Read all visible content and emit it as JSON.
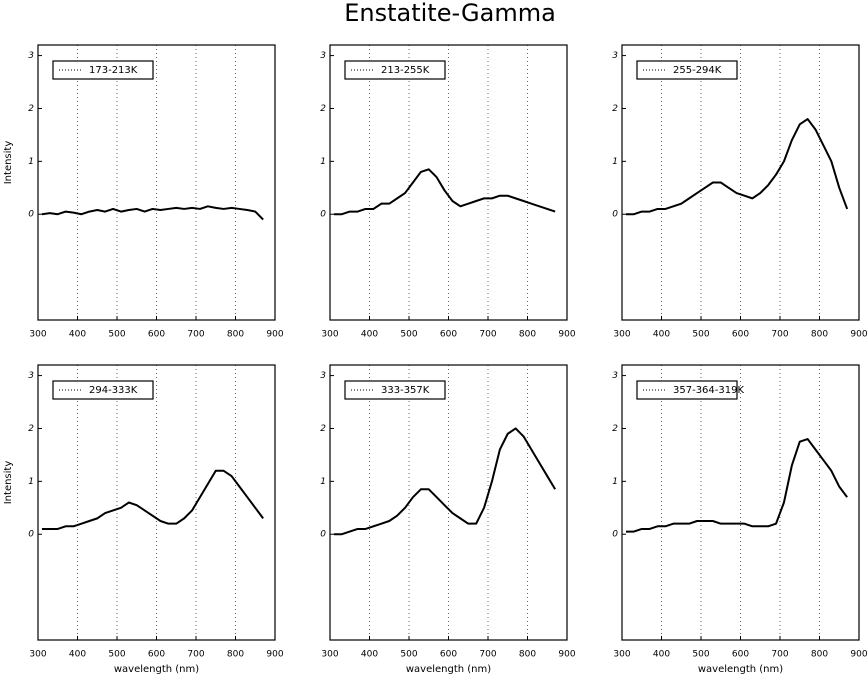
{
  "title": "Enstatite-Gamma",
  "chart_data": [
    {
      "type": "line",
      "y_label": "Intensity",
      "x": [
        310,
        330,
        350,
        370,
        390,
        410,
        430,
        450,
        470,
        490,
        510,
        530,
        550,
        570,
        590,
        610,
        630,
        650,
        670,
        690,
        710,
        730,
        750,
        770,
        790,
        810,
        830,
        850,
        870
      ],
      "series": [
        {
          "name": "173-213K",
          "color": "#000000",
          "values": [
            0,
            0.02,
            0,
            0.05,
            0.03,
            0,
            0.05,
            0.08,
            0.05,
            0.1,
            0.05,
            0.08,
            0.1,
            0.05,
            0.1,
            0.08,
            0.1,
            0.12,
            0.1,
            0.12,
            0.1,
            0.15,
            0.12,
            0.1,
            0.12,
            0.1,
            0.08,
            0.05,
            -0.1
          ]
        }
      ],
      "xlim": [
        300,
        900
      ],
      "ylim": [
        -2,
        3.2
      ],
      "xticks": [
        300,
        400,
        500,
        600,
        700,
        800,
        900
      ],
      "yticks": [
        0,
        1,
        2,
        3
      ],
      "grid": true
    },
    {
      "type": "line",
      "x": [
        310,
        330,
        350,
        370,
        390,
        410,
        430,
        450,
        470,
        490,
        510,
        530,
        550,
        570,
        590,
        610,
        630,
        650,
        670,
        690,
        710,
        730,
        750,
        770,
        790,
        810,
        830,
        850,
        870
      ],
      "series": [
        {
          "name": "213-255K",
          "color": "#000000",
          "values": [
            0,
            0,
            0.05,
            0.05,
            0.1,
            0.1,
            0.2,
            0.2,
            0.3,
            0.4,
            0.6,
            0.8,
            0.85,
            0.7,
            0.45,
            0.25,
            0.15,
            0.2,
            0.25,
            0.3,
            0.3,
            0.35,
            0.35,
            0.3,
            0.25,
            0.2,
            0.15,
            0.1,
            0.05
          ]
        }
      ],
      "xlim": [
        300,
        900
      ],
      "ylim": [
        -2,
        3.2
      ],
      "xticks": [
        300,
        400,
        500,
        600,
        700,
        800,
        900
      ],
      "yticks": [
        0,
        1,
        2,
        3
      ],
      "grid": true
    },
    {
      "type": "line",
      "x": [
        310,
        330,
        350,
        370,
        390,
        410,
        430,
        450,
        470,
        490,
        510,
        530,
        550,
        570,
        590,
        610,
        630,
        650,
        670,
        690,
        710,
        730,
        750,
        770,
        790,
        810,
        830,
        850,
        870
      ],
      "series": [
        {
          "name": "255-294K",
          "color": "#000000",
          "values": [
            0,
            0,
            0.05,
            0.05,
            0.1,
            0.1,
            0.15,
            0.2,
            0.3,
            0.4,
            0.5,
            0.6,
            0.6,
            0.5,
            0.4,
            0.35,
            0.3,
            0.4,
            0.55,
            0.75,
            1.0,
            1.4,
            1.7,
            1.8,
            1.6,
            1.3,
            1.0,
            0.5,
            0.1
          ]
        }
      ],
      "xlim": [
        300,
        900
      ],
      "ylim": [
        -2,
        3.2
      ],
      "xticks": [
        300,
        400,
        500,
        600,
        700,
        800,
        900
      ],
      "yticks": [
        0,
        1,
        2,
        3
      ],
      "grid": true
    },
    {
      "type": "line",
      "y_label": "Intensity",
      "x_label": "wavelength (nm)",
      "x": [
        310,
        330,
        350,
        370,
        390,
        410,
        430,
        450,
        470,
        490,
        510,
        530,
        550,
        570,
        590,
        610,
        630,
        650,
        670,
        690,
        710,
        730,
        750,
        770,
        790,
        810,
        830,
        850,
        870
      ],
      "series": [
        {
          "name": "294-333K",
          "color": "#000000",
          "values": [
            0.1,
            0.1,
            0.1,
            0.15,
            0.15,
            0.2,
            0.25,
            0.3,
            0.4,
            0.45,
            0.5,
            0.6,
            0.55,
            0.45,
            0.35,
            0.25,
            0.2,
            0.2,
            0.3,
            0.45,
            0.7,
            0.95,
            1.2,
            1.2,
            1.1,
            0.9,
            0.7,
            0.5,
            0.3
          ]
        }
      ],
      "xlim": [
        300,
        900
      ],
      "ylim": [
        -2,
        3.2
      ],
      "xticks": [
        300,
        400,
        500,
        600,
        700,
        800,
        900
      ],
      "yticks": [
        0,
        1,
        2,
        3
      ],
      "grid": true
    },
    {
      "type": "line",
      "x_label": "wavelength (nm)",
      "x": [
        310,
        330,
        350,
        370,
        390,
        410,
        430,
        450,
        470,
        490,
        510,
        530,
        550,
        570,
        590,
        610,
        630,
        650,
        670,
        690,
        710,
        730,
        750,
        770,
        790,
        810,
        830,
        850,
        870
      ],
      "series": [
        {
          "name": "333-357K",
          "color": "#000000",
          "values": [
            0,
            0,
            0.05,
            0.1,
            0.1,
            0.15,
            0.2,
            0.25,
            0.35,
            0.5,
            0.7,
            0.85,
            0.85,
            0.7,
            0.55,
            0.4,
            0.3,
            0.2,
            0.2,
            0.5,
            1.0,
            1.6,
            1.9,
            2.0,
            1.85,
            1.6,
            1.35,
            1.1,
            0.85
          ]
        }
      ],
      "xlim": [
        300,
        900
      ],
      "ylim": [
        -2,
        3.2
      ],
      "xticks": [
        300,
        400,
        500,
        600,
        700,
        800,
        900
      ],
      "yticks": [
        0,
        1,
        2,
        3
      ],
      "grid": true
    },
    {
      "type": "line",
      "x_label": "wavelength (nm)",
      "x": [
        310,
        330,
        350,
        370,
        390,
        410,
        430,
        450,
        470,
        490,
        510,
        530,
        550,
        570,
        590,
        610,
        630,
        650,
        670,
        690,
        710,
        730,
        750,
        770,
        790,
        810,
        830,
        850,
        870
      ],
      "series": [
        {
          "name": "357-364-319K",
          "color": "#000000",
          "values": [
            0.05,
            0.05,
            0.1,
            0.1,
            0.15,
            0.15,
            0.2,
            0.2,
            0.2,
            0.25,
            0.25,
            0.25,
            0.2,
            0.2,
            0.2,
            0.2,
            0.15,
            0.15,
            0.15,
            0.2,
            0.6,
            1.3,
            1.75,
            1.8,
            1.6,
            1.4,
            1.2,
            0.9,
            0.7
          ]
        }
      ],
      "xlim": [
        300,
        900
      ],
      "ylim": [
        -2,
        3.2
      ],
      "xticks": [
        300,
        400,
        500,
        600,
        700,
        800,
        900
      ],
      "yticks": [
        0,
        1,
        2,
        3
      ],
      "grid": true
    }
  ]
}
